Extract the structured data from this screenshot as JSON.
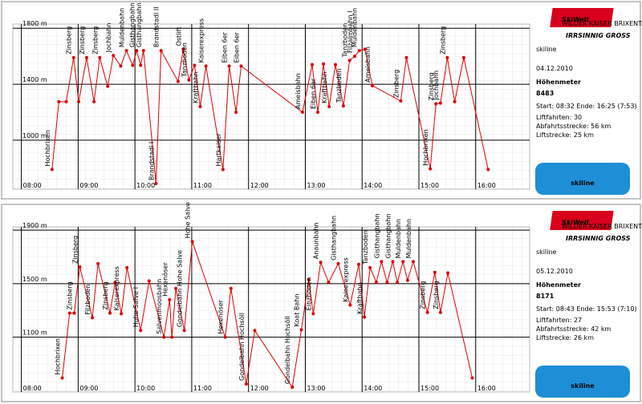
{
  "chart_data": [
    {
      "type": "line",
      "color": "#dd0000",
      "x": [
        8.54,
        8.66,
        8.79,
        8.92,
        9.01,
        9.15,
        9.28,
        9.38,
        9.52,
        9.62,
        9.75,
        9.85,
        9.96,
        10.03,
        10.1,
        10.15,
        10.37,
        10.46,
        10.76,
        10.85,
        10.95,
        11.05,
        11.15,
        11.25,
        11.55,
        11.66,
        11.78,
        11.87,
        12.95,
        13.12,
        13.22,
        13.32,
        13.42,
        13.53,
        13.67,
        13.78,
        13.87,
        13.95,
        14.05,
        14.18,
        14.68,
        14.78,
        15.2,
        15.3,
        15.38,
        15.5,
        15.63,
        15.79,
        16.22
      ],
      "values": [
        790,
        1275,
        1275,
        1590,
        1275,
        1590,
        1275,
        1590,
        1385,
        1605,
        1530,
        1640,
        1535,
        1640,
        1535,
        1640,
        690,
        1640,
        1420,
        1650,
        1430,
        1535,
        1240,
        1530,
        790,
        1530,
        1200,
        1530,
        1200,
        1540,
        1200,
        1545,
        1240,
        1540,
        1245,
        1570,
        1600,
        1640,
        1650,
        1390,
        1280,
        1590,
        795,
        1260,
        1265,
        1590,
        1275,
        1590,
        790
      ],
      "point_labels": [
        "Hochbrixen",
        null,
        null,
        "Zinsberg",
        null,
        "Zinsberg",
        null,
        "Zinsberg",
        null,
        "Jochbahn",
        null,
        "Muldenbahn",
        null,
        "Gisthangbahn",
        null,
        "Gisthangbahn",
        "Brandstadl I",
        "Brandstadl II",
        null,
        "Ostlift",
        "Tanzboden",
        null,
        "Kraftbahn",
        "Kaiserexpress",
        "Hartkaiser",
        "Eiben 6er",
        null,
        "Eiben 6er",
        "Ameisbahn",
        null,
        "Eiben 6er",
        null,
        "Kraftbahn",
        null,
        "Tanzboden",
        "Tanzboden",
        "Filzalmbahn I",
        "Muldenbahn",
        null,
        "Ameisbahn",
        "Zinsberg",
        null,
        "Hochbrixen",
        "Zinsberg",
        "Jochbahn",
        "Zinsberg",
        null,
        null,
        null
      ],
      "xlim": [
        7.85,
        16.95
      ],
      "ylim": [
        650,
        1830
      ],
      "xticks": [
        {
          "value": 8,
          "label": "08:00"
        },
        {
          "value": 9,
          "label": "09:00"
        },
        {
          "value": 10,
          "label": "10:00"
        },
        {
          "value": 11,
          "label": "11:00"
        },
        {
          "value": 12,
          "label": "12:00"
        },
        {
          "value": 13,
          "label": "13:00"
        },
        {
          "value": 14,
          "label": "14:00"
        },
        {
          "value": 15,
          "label": "15:00"
        },
        {
          "value": 16,
          "label": "16:00"
        }
      ],
      "yticks": [
        {
          "value": 1000,
          "label": "1000 m"
        },
        {
          "value": 1400,
          "label": "1400 m"
        },
        {
          "value": 1800,
          "label": "1800 m"
        }
      ],
      "grid": true
    },
    {
      "type": "line",
      "color": "#dd0000",
      "x": [
        8.72,
        8.85,
        8.93,
        9.03,
        9.25,
        9.35,
        9.56,
        9.65,
        9.76,
        9.86,
        10.1,
        10.25,
        10.51,
        10.61,
        10.65,
        10.72,
        10.87,
        11.01,
        11.59,
        11.69,
        11.96,
        12.11,
        12.77,
        12.93,
        13.06,
        13.14,
        13.27,
        13.41,
        13.58,
        13.79,
        13.94,
        14.04,
        14.14,
        14.25,
        14.34,
        14.44,
        14.54,
        14.62,
        14.72,
        14.8,
        14.9,
        15.15,
        15.28,
        15.38,
        15.51,
        15.94
      ],
      "values": [
        795,
        1280,
        1280,
        1625,
        1245,
        1650,
        1280,
        1510,
        1275,
        1620,
        1150,
        1520,
        1100,
        1380,
        1100,
        1465,
        1150,
        1815,
        1100,
        1465,
        750,
        1150,
        725,
        1155,
        1530,
        1275,
        1660,
        1510,
        1650,
        1340,
        1645,
        1250,
        1620,
        1510,
        1665,
        1510,
        1665,
        1510,
        1665,
        1525,
        1665,
        1285,
        1585,
        1285,
        1580,
        795
      ],
      "point_labels": [
        "Hochbrixen",
        null,
        "Zinsberg",
        "Zinsberg",
        "Filzboden",
        null,
        "Zinsberg",
        null,
        "Kaiserexpress",
        null,
        "Hohe Salve I",
        null,
        "Salvenmoosbahn",
        "Hexenöser",
        null,
        null,
        "Gondelbahn Hohe Salve",
        "Hohe Salve",
        "Hexenöser",
        null,
        "Gondelbahn Hochsöll",
        null,
        "Gondelbahn Hochsöll",
        "Koat Bahn",
        null,
        "Eibzboden",
        "Anaunbahn",
        null,
        "Gisthangbahn",
        "Kaiserexpress",
        null,
        "Kraftbahn",
        "Tanzboden",
        null,
        "Gisthangbahn",
        null,
        "Gisthangbahn",
        null,
        "Muldenbahn",
        null,
        "Muldenbahn",
        "Zinsberg",
        null,
        "Zinsberg",
        null,
        null
      ],
      "xlim": [
        7.85,
        16.95
      ],
      "ylim": [
        690,
        1925
      ],
      "xticks": [
        {
          "value": 8,
          "label": "08:00"
        },
        {
          "value": 9,
          "label": "09:00"
        },
        {
          "value": 10,
          "label": "10:00"
        },
        {
          "value": 11,
          "label": "11:00"
        },
        {
          "value": 12,
          "label": "12:00"
        },
        {
          "value": 13,
          "label": "13:00"
        },
        {
          "value": 14,
          "label": "14:00"
        },
        {
          "value": 15,
          "label": "15:00"
        },
        {
          "value": 16,
          "label": "16:00"
        }
      ],
      "yticks": [
        {
          "value": 1100,
          "label": "1100 m"
        },
        {
          "value": 1500,
          "label": "1500 m"
        },
        {
          "value": 1900,
          "label": "1900 m"
        }
      ],
      "grid": true
    }
  ],
  "panels": [
    {
      "logo": "SkiWelt",
      "logo_sub": "WILDER KAISER BRIXENTAL",
      "slogan": "IRRSINNIG GROSS",
      "brand": "skiline",
      "date": "04.12.2010",
      "heading": "Höhenmeter",
      "total": "8483",
      "start": "Start: 08:32 Ende: 16:25 (7:53)",
      "lines": [
        "Liftfahrten: 30",
        "Abfahrtsstrecke: 56 km",
        "Liftstrecke: 25 km"
      ],
      "badge": "skiline"
    },
    {
      "logo": "SkiWelt",
      "logo_sub": "WILDER KAISER BRIXENTAL",
      "slogan": "IRRSINNIG GROSS",
      "brand": "skiline",
      "date": "05.12.2010",
      "heading": "Höhenmeter",
      "total": "8171",
      "start": "Start: 08:43 Ende: 15:53 (7:10)",
      "lines": [
        "Liftfahrten: 27",
        "Abfahrtsstrecke: 42 km",
        "Liftstrecke: 26 km"
      ],
      "badge": "skiline"
    }
  ]
}
